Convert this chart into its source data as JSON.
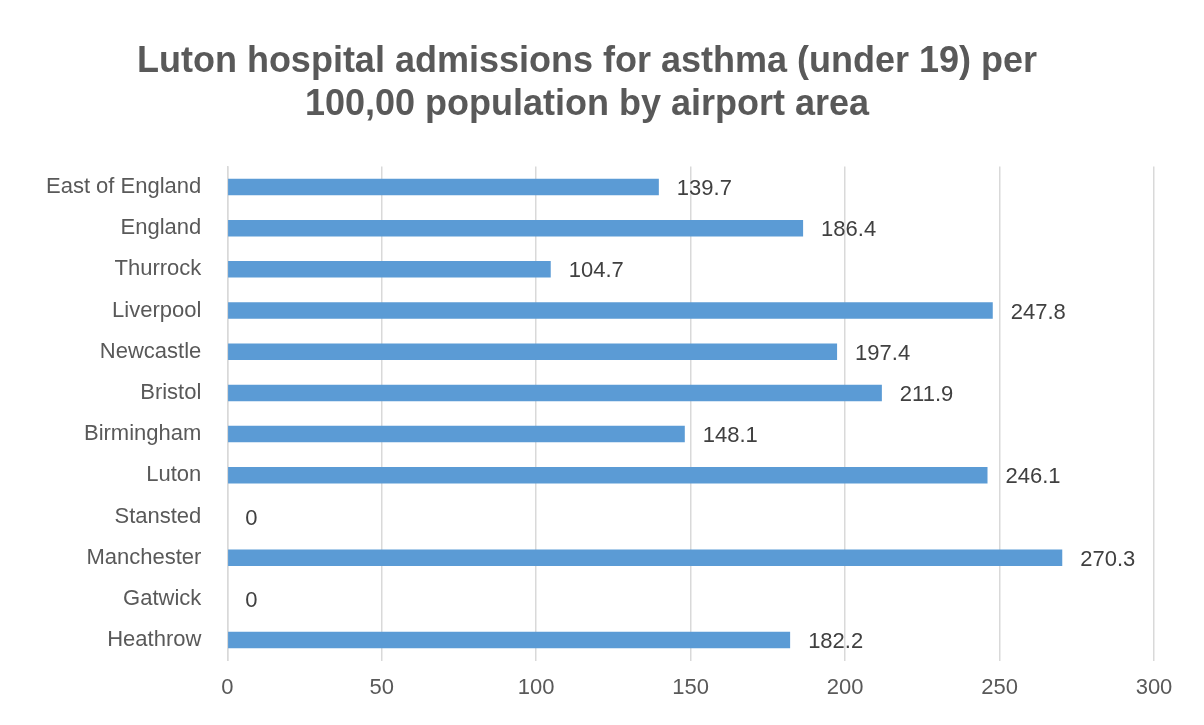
{
  "chart_data": {
    "type": "bar",
    "orientation": "horizontal",
    "title": "Luton hospital admissions for asthma (under 19) per 100,00 population by airport area",
    "categories": [
      "East of England",
      "England",
      "Thurrock",
      "Liverpool",
      "Newcastle",
      "Bristol",
      "Birmingham",
      "Luton",
      "Stansted",
      "Manchester",
      "Gatwick",
      "Heathrow"
    ],
    "values": [
      139.7,
      186.4,
      104.7,
      247.8,
      197.4,
      211.9,
      148.1,
      246.1,
      0,
      270.3,
      0,
      182.2
    ],
    "color": "#5b9bd5",
    "xlim": [
      0,
      300
    ],
    "xticks": [
      0,
      50,
      100,
      150,
      200,
      250,
      300
    ],
    "grid": "x",
    "data_labels": true
  }
}
